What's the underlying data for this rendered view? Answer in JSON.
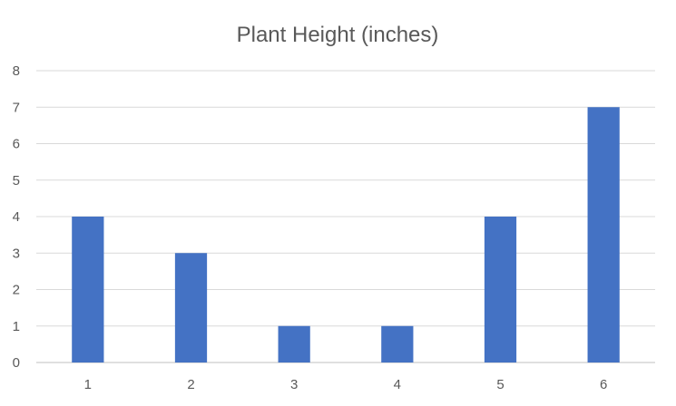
{
  "chart_data": {
    "type": "bar",
    "title": "Plant Height (inches)",
    "categories": [
      "1",
      "2",
      "3",
      "4",
      "5",
      "6"
    ],
    "values": [
      4,
      3,
      1,
      1,
      4,
      7
    ],
    "ylim": [
      0,
      8
    ],
    "yticks": [
      "0",
      "1",
      "2",
      "3",
      "4",
      "5",
      "6",
      "7",
      "8"
    ],
    "grid": true,
    "legend": "none",
    "bar_color": "#4472c4",
    "gridline_color": "#d9d9d9",
    "text_color": "#595959"
  }
}
